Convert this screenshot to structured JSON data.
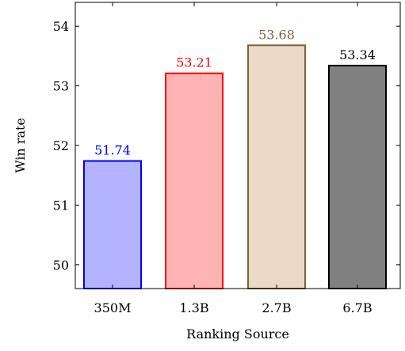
{
  "chart_data": {
    "type": "bar",
    "title": "",
    "xlabel": "Ranking Source",
    "ylabel": "Win rate",
    "categories": [
      "350M",
      "1.3B",
      "2.7B",
      "6.7B"
    ],
    "values": [
      51.74,
      53.21,
      53.68,
      53.34
    ],
    "data_labels": [
      "51.74",
      "53.21",
      "53.68",
      "53.34"
    ],
    "ylim": [
      49.6,
      54.4
    ],
    "yticks": [
      50,
      51,
      52,
      53,
      54
    ],
    "grid": false,
    "legend": "none",
    "bar_fills": [
      "#b3b3ff",
      "#ffb3b3",
      "#ead9c4",
      "#808080"
    ],
    "bar_strokes": [
      "#0000ff",
      "#ff0000",
      "#7f5f3d",
      "#000000"
    ],
    "label_colors": [
      "#0000ff",
      "#ff0000",
      "#7f5f3d",
      "#000000"
    ]
  }
}
